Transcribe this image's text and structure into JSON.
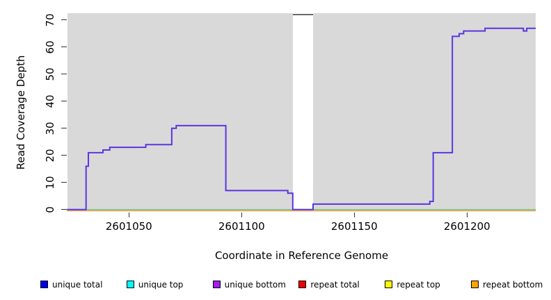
{
  "chart_data": {
    "type": "line",
    "subtype": "step",
    "title": "",
    "xlabel": "Coordinate in Reference Genome",
    "ylabel": "Read Coverage Depth",
    "x_ticks": [
      2601050,
      2601100,
      2601150,
      2601200
    ],
    "y_ticks": [
      0,
      10,
      20,
      30,
      40,
      50,
      60,
      70
    ],
    "xlim": [
      2601022.5,
      2601230.5
    ],
    "ylim": [
      0,
      72
    ],
    "plot_background": "#d9d9d9",
    "grid": false,
    "masked_region": {
      "from": 2601122.7,
      "to": 2601131.7,
      "fill": "#ffffff",
      "cap_color": "#696969"
    },
    "series": [
      {
        "name": "unique coverage depth",
        "color": "#5a35e0",
        "style": "step",
        "segments": [
          [
            2601022.5,
            2601031,
            0
          ],
          [
            2601031,
            2601032,
            16
          ],
          [
            2601032,
            2601038.5,
            21
          ],
          [
            2601038.5,
            2601041.5,
            22
          ],
          [
            2601041.5,
            2601057.5,
            23
          ],
          [
            2601057.5,
            2601069,
            24
          ],
          [
            2601069,
            2601071,
            30
          ],
          [
            2601071,
            2601093,
            31
          ],
          [
            2601093,
            2601120.5,
            7
          ],
          [
            2601120.5,
            2601122.7,
            6
          ],
          [
            2601122.7,
            2601131.7,
            0
          ],
          [
            2601131.7,
            2601183.5,
            2
          ],
          [
            2601183.5,
            2601185,
            3
          ],
          [
            2601185,
            2601193.5,
            21
          ],
          [
            2601193.5,
            2601196.5,
            64
          ],
          [
            2601196.5,
            2601198.5,
            65
          ],
          [
            2601198.5,
            2601208,
            66
          ],
          [
            2601208,
            2601225,
            67
          ],
          [
            2601225,
            2601226.5,
            66
          ],
          [
            2601226.5,
            2601230.5,
            67
          ]
        ]
      },
      {
        "name": "zero baseline (green)",
        "color": "#7dc87d",
        "style": "line",
        "segments": [
          [
            2601022.5,
            2601230.5,
            0
          ]
        ]
      },
      {
        "name": "zero baseline (orange)",
        "color": "#e0a052",
        "style": "line",
        "segments": [
          [
            2601022.5,
            2601230.5,
            0
          ]
        ]
      }
    ],
    "legend_position": "bottom",
    "legend": [
      {
        "label": "unique total",
        "color": "#0000ee"
      },
      {
        "label": "unique top",
        "color": "#00ffff"
      },
      {
        "label": "unique bottom",
        "color": "#a020f0"
      },
      {
        "label": "repeat total",
        "color": "#ee0000"
      },
      {
        "label": "repeat top",
        "color": "#ffff00"
      },
      {
        "label": "repeat bottom",
        "color": "#ffa500"
      }
    ]
  }
}
